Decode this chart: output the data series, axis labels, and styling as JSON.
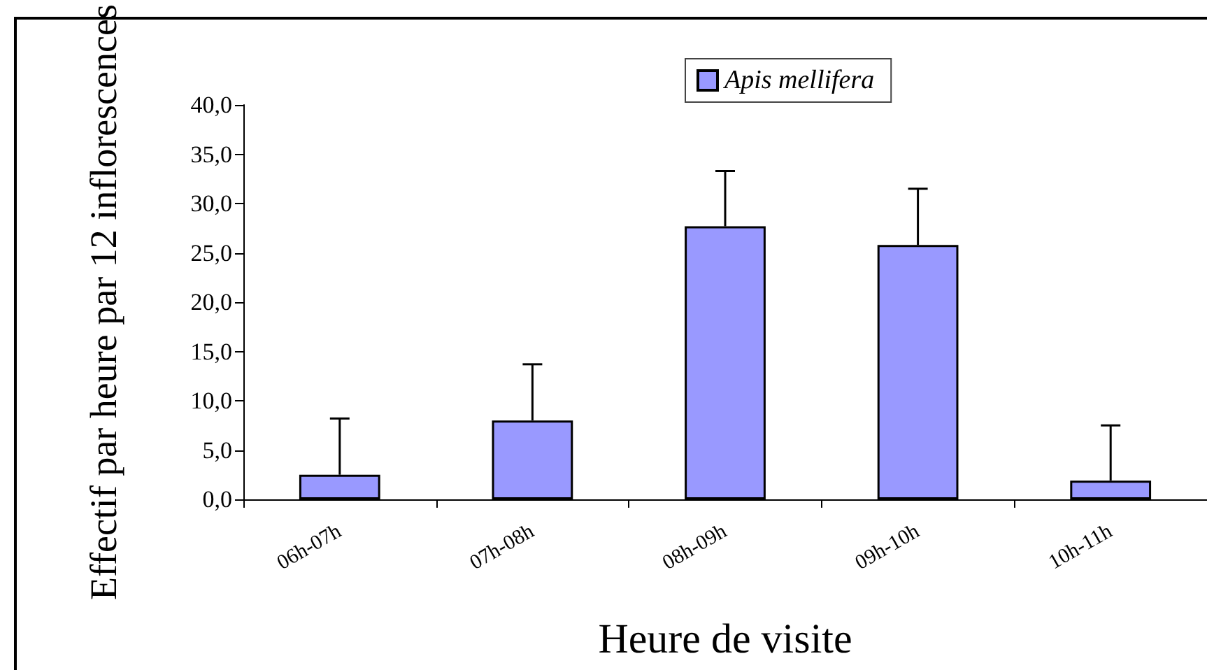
{
  "chart_data": {
    "type": "bar",
    "xlabel": "Heure de visite",
    "ylabel": "Effectif par heure par 12 inflorescences",
    "categories": [
      "06h-07h",
      "07h-08h",
      "08h-09h",
      "09h-10h",
      "10h-11h"
    ],
    "series": [
      {
        "name": "Apis mellifera",
        "color": "#9999ff",
        "values": [
          2.5,
          8.0,
          27.7,
          25.8,
          1.9
        ],
        "errors": [
          [
            2.5,
            8.2
          ],
          [
            8.0,
            13.7
          ],
          [
            27.7,
            33.3
          ],
          [
            25.8,
            31.5
          ],
          [
            1.9,
            7.5
          ]
        ]
      }
    ],
    "ylim": [
      0,
      40
    ],
    "yticks": [
      {
        "value": 0,
        "label": "0,0"
      },
      {
        "value": 5,
        "label": "5,0"
      },
      {
        "value": 10,
        "label": "10,0"
      },
      {
        "value": 15,
        "label": "15,0"
      },
      {
        "value": 20,
        "label": "20,0"
      },
      {
        "value": 25,
        "label": "25,0"
      },
      {
        "value": 30,
        "label": "30,0"
      },
      {
        "value": 35,
        "label": "35,0"
      },
      {
        "value": 40,
        "label": "40,0"
      }
    ],
    "grid": false,
    "legend": "top"
  }
}
